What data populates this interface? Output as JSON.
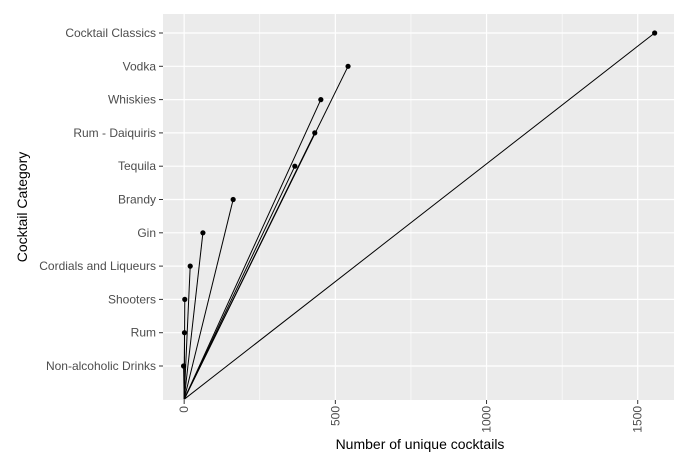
{
  "chart_data": {
    "type": "scatter",
    "title": "",
    "xlabel": "Number of unique cocktails",
    "ylabel": "Cocktail Category",
    "xlim": [
      -70,
      1620
    ],
    "x_ticks": [
      0,
      500,
      1000,
      1500
    ],
    "x_tick_labels": [
      "0",
      "500",
      "1000",
      "1500"
    ],
    "y_levels": [
      "Non-alcoholic Drinks",
      "Rum",
      "Shooters",
      "Cordials and Liqueurs",
      "Gin",
      "Brandy",
      "Tequila",
      "Rum - Daiquiris",
      "Whiskies",
      "Vodka",
      "Cocktail Classics"
    ],
    "points": [
      {
        "category": "Cocktail Classics",
        "x": 1556
      },
      {
        "category": "Vodka",
        "x": 542
      },
      {
        "category": "Whiskies",
        "x": 452
      },
      {
        "category": "Rum - Daiquiris",
        "x": 432
      },
      {
        "category": "Tequila",
        "x": 366
      },
      {
        "category": "Brandy",
        "x": 162
      },
      {
        "category": "Gin",
        "x": 62
      },
      {
        "category": "Cordials and Liqueurs",
        "x": 20
      },
      {
        "category": "Shooters",
        "x": 2
      },
      {
        "category": "Rum",
        "x": 1
      },
      {
        "category": "Non-alcoholic Drinks",
        "x": -2
      }
    ],
    "lines_from_origin": true,
    "panel_background": "#ebebeb",
    "grid": true,
    "grid_color": "#ffffff",
    "point_color": "#000000",
    "legend": "none"
  }
}
